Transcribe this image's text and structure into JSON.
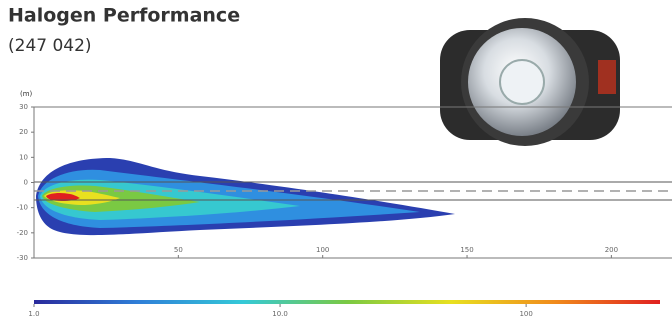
{
  "title": "Halogen Performance",
  "subtitle": "(247 042)",
  "chart_data": [
    {
      "type": "beam-pattern",
      "y_label": "(m)",
      "xlim": [
        0,
        221
      ],
      "xticks": [
        50,
        100,
        150,
        200
      ],
      "ylim": [
        -30,
        30
      ],
      "yticks": [
        30,
        20,
        10,
        0,
        -10,
        -20,
        -30
      ]
    },
    {
      "type": "colorbar",
      "log_scale": true,
      "xlim": [
        1,
        350
      ],
      "xticks": [
        {
          "value": 1,
          "label": "1.0"
        },
        {
          "value": 10,
          "label": "10.0"
        },
        100
      ],
      "colors": [
        "#2a2a9c",
        "#2f7fd8",
        "#34c9d8",
        "#7ac943",
        "#e8e020",
        "#f08a1c",
        "#e02020"
      ]
    }
  ]
}
